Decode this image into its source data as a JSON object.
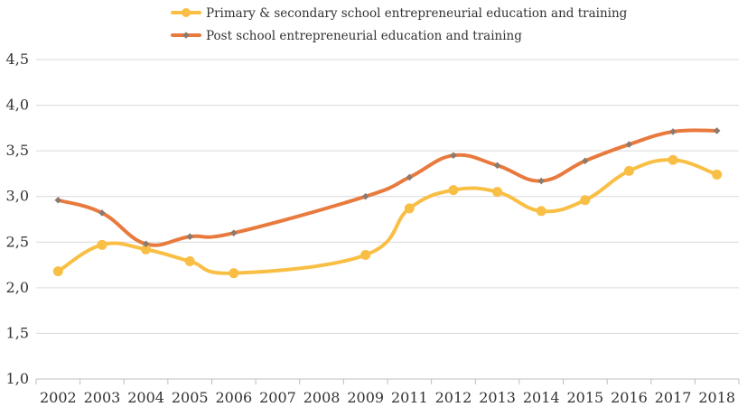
{
  "chart_data": {
    "type": "line",
    "categories": [
      "2002",
      "2003",
      "2004",
      "2005",
      "2006",
      "2007",
      "2008",
      "2009",
      "2011",
      "2012",
      "2013",
      "2014",
      "2015",
      "2016",
      "2017",
      "2018"
    ],
    "series": [
      {
        "name": "Primary & secondary school entrepreneurial education and training",
        "color": "#f9bf45",
        "values": [
          2.18,
          2.47,
          2.42,
          2.29,
          2.16,
          null,
          null,
          2.36,
          2.87,
          3.07,
          3.05,
          2.84,
          2.96,
          3.28,
          3.4,
          3.24
        ]
      },
      {
        "name": "Post school entrepreneurial education and training",
        "color": "#e87a3e",
        "values": [
          2.96,
          2.82,
          2.48,
          2.56,
          2.6,
          null,
          null,
          3.0,
          3.21,
          3.45,
          3.34,
          3.17,
          3.39,
          3.57,
          3.71,
          3.72
        ]
      }
    ],
    "title": "",
    "xlabel": "",
    "ylabel": "",
    "ylim": [
      1.0,
      4.5
    ],
    "yticks": [
      "1,0",
      "1,5",
      "2,0",
      "2,5",
      "3,0",
      "3,5",
      "4,0",
      "4,5"
    ],
    "grid": true,
    "legend_position": "top"
  }
}
